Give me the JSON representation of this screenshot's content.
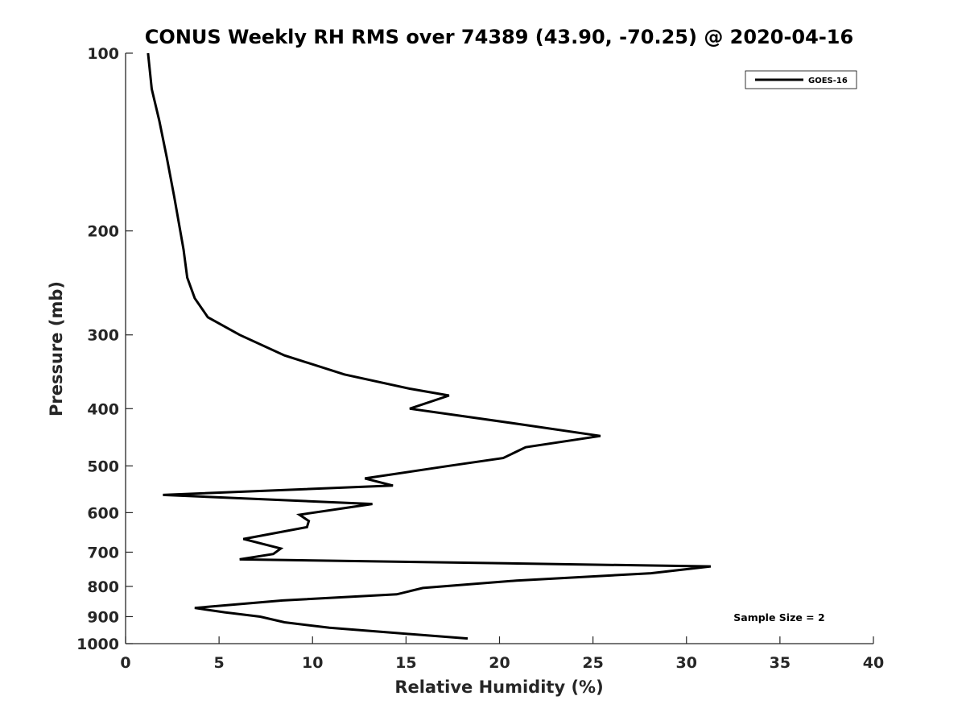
{
  "chart_data": {
    "type": "line",
    "title": "CONUS Weekly RH RMS over 74389 (43.90, -70.25) @ 2020-04-16",
    "xlabel": "Relative Humidity (%)",
    "ylabel": "Pressure (mb)",
    "xlim": [
      0,
      40
    ],
    "ylim": [
      100,
      1000
    ],
    "y_scale": "log",
    "y_reversed": true,
    "x_ticks": [
      "0",
      "5",
      "10",
      "15",
      "20",
      "25",
      "30",
      "35",
      "40"
    ],
    "y_ticks": [
      "100",
      "200",
      "300",
      "400",
      "500",
      "600",
      "700",
      "800",
      "900",
      "1000"
    ],
    "grid": false,
    "legend_position": "top-right",
    "annotation": "Sample Size = 2",
    "series": [
      {
        "name": "GOES-16",
        "color": "#000000",
        "x": [
          1.2,
          1.4,
          1.8,
          2.2,
          2.6,
          3.1,
          3.3,
          3.7,
          4.4,
          6.1,
          8.5,
          11.7,
          15.2,
          17.3,
          15.2,
          21.1,
          25.4,
          21.4,
          20.2,
          17.3,
          12.8,
          14.3,
          2.0,
          13.2,
          9.3,
          9.8,
          9.7,
          6.3,
          8.3,
          7.9,
          6.1,
          31.3,
          28.1,
          20.9,
          15.9,
          14.5,
          8.4,
          3.7,
          5.3,
          7.2,
          8.5,
          10.9,
          14.6,
          18.3
        ],
        "y": [
          100,
          115,
          130,
          150,
          175,
          215,
          240,
          260,
          280,
          300,
          325,
          350,
          370,
          380,
          400,
          425,
          445,
          465,
          485,
          500,
          525,
          540,
          560,
          580,
          605,
          620,
          635,
          665,
          690,
          705,
          720,
          740,
          760,
          782,
          805,
          825,
          845,
          870,
          885,
          900,
          920,
          940,
          960,
          980
        ]
      }
    ]
  }
}
